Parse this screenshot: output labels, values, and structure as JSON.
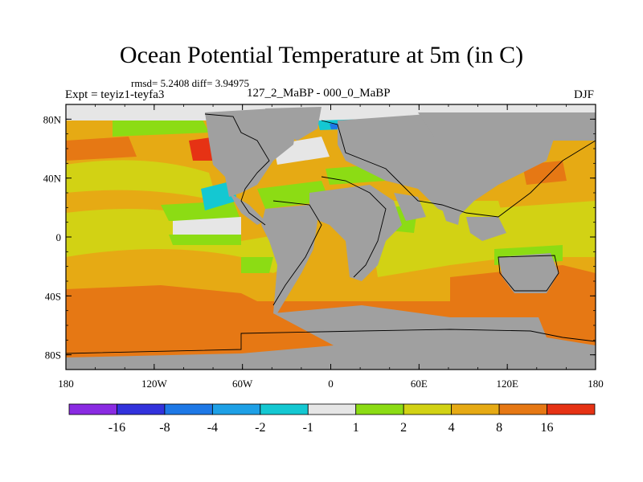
{
  "title": "Ocean Potential Temperature at 5m (in C)",
  "stats": "rmsd= 5.2408 diff= 3.94975",
  "experiment": "Expt = teyiz1-teyfa3",
  "period": "127_2_MaBP - 000_0_MaBP",
  "season": "DJF",
  "chart_data": {
    "type": "heatmap",
    "x_ticks": [
      "180",
      "120W",
      "60W",
      "0",
      "60E",
      "120E",
      "180"
    ],
    "x_tick_values": [
      -180,
      -120,
      -60,
      0,
      60,
      120,
      180
    ],
    "y_ticks": [
      "80N",
      "40N",
      "0",
      "40S",
      "80S"
    ],
    "y_tick_values": [
      80,
      40,
      0,
      -40,
      -80
    ],
    "xlim": [
      -180,
      180
    ],
    "ylim": [
      -90,
      90
    ],
    "land_color": "#a0a0a0",
    "colorbar": {
      "colors": [
        "#8a2be2",
        "#3232dc",
        "#1e78e6",
        "#1ea0e6",
        "#14c8d2",
        "#e6e6e6",
        "#8cdc14",
        "#d2d214",
        "#e6aa14",
        "#e67814",
        "#e63214"
      ],
      "labels": [
        "-16",
        "-8",
        "-4",
        "-2",
        "-1",
        "1",
        "2",
        "4",
        "8",
        "16"
      ]
    }
  }
}
